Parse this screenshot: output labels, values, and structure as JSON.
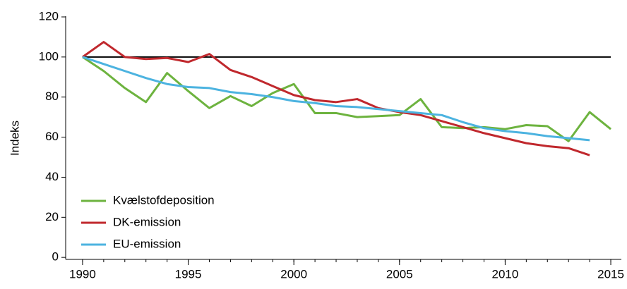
{
  "chart_data": {
    "type": "line",
    "y_label": "Indeks",
    "x": [
      1990,
      1991,
      1992,
      1993,
      1994,
      1995,
      1996,
      1997,
      1998,
      1999,
      2000,
      2001,
      2002,
      2003,
      2004,
      2005,
      2006,
      2007,
      2008,
      2009,
      2010,
      2011,
      2012,
      2013,
      2014,
      2015
    ],
    "series": [
      {
        "name": "Kvælstofdeposition",
        "color": "#6db33f",
        "values": [
          100,
          93,
          84.5,
          77.5,
          92,
          83,
          74.5,
          80.5,
          75.5,
          82,
          86.5,
          72,
          72,
          70,
          70.5,
          71,
          79,
          65,
          64.5,
          65,
          64,
          66,
          65.5,
          58,
          72.5,
          64
        ]
      },
      {
        "name": "DK-emission",
        "color": "#c0282d",
        "values": [
          100,
          107.5,
          100,
          99,
          99.5,
          97.5,
          101.5,
          93.5,
          90,
          85.5,
          81,
          78.5,
          77.5,
          79,
          74.5,
          72.5,
          71,
          68,
          65,
          62,
          59.5,
          57,
          55.5,
          54.5,
          51,
          null
        ]
      },
      {
        "name": "EU-emission",
        "color": "#4cb3e0",
        "values": [
          100,
          96.5,
          93,
          89.5,
          86.5,
          85,
          84.5,
          82.5,
          81.5,
          80,
          78,
          77,
          75.5,
          75,
          74,
          73,
          72,
          71,
          67.5,
          64.5,
          63,
          62,
          60.5,
          59.5,
          58.5,
          null
        ]
      }
    ],
    "reference_line": {
      "value": 100,
      "color": "#000000"
    },
    "xlim": [
      1989.2,
      2015.5
    ],
    "xticks": [
      1990,
      1995,
      2000,
      2005,
      2010,
      2015
    ],
    "ylim": [
      -1,
      120
    ],
    "yticks": [
      0,
      20,
      40,
      60,
      80,
      100,
      120
    ],
    "legend": "lower left"
  }
}
